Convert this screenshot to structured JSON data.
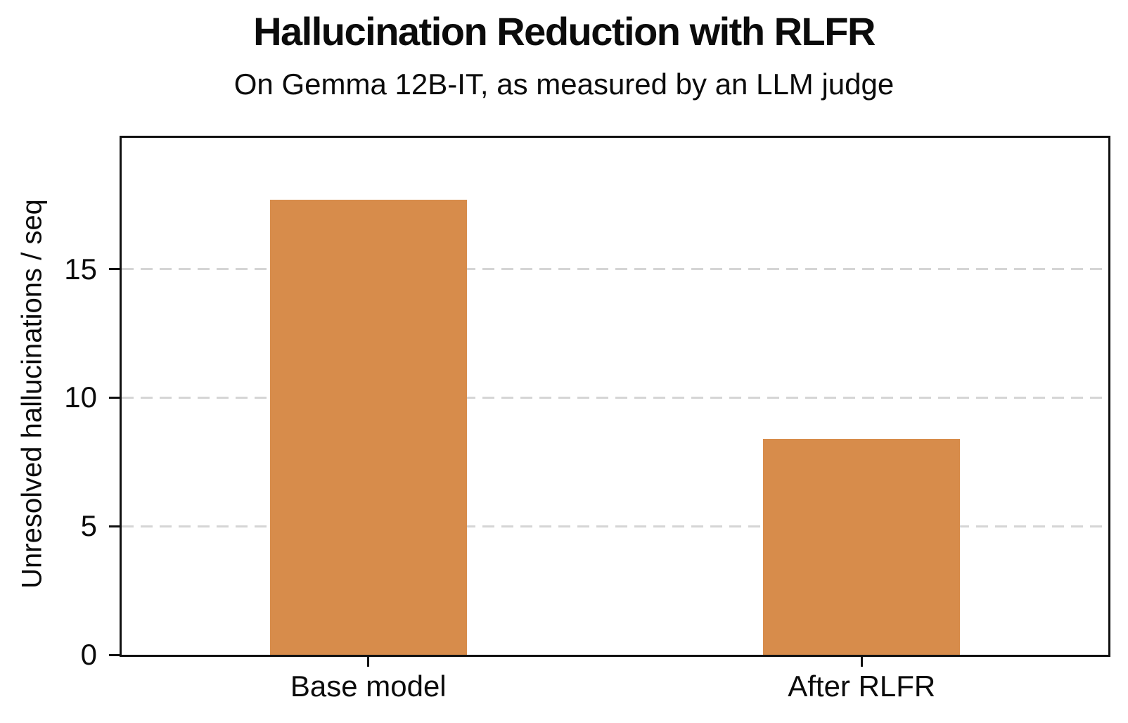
{
  "chart_data": {
    "type": "bar",
    "title": "Hallucination Reduction with RLFR",
    "subtitle": "On Gemma 12B-IT, as measured by an LLM judge",
    "categories": [
      "Base model",
      "After RLFR"
    ],
    "values": [
      17.7,
      8.4
    ],
    "xlabel": "",
    "ylabel": "Unresolved hallucinations / seq",
    "ylim": [
      0,
      20.1
    ],
    "yticks": [
      0,
      5,
      10,
      15
    ],
    "grid": "horizontal dashed at yticks above 0",
    "legend": "none",
    "colors": {
      "bar": "#d78c4b",
      "text": "#0b0b0b",
      "gridline": "#d5d5d5",
      "spine": "#111111",
      "background": "#ffffff"
    }
  }
}
